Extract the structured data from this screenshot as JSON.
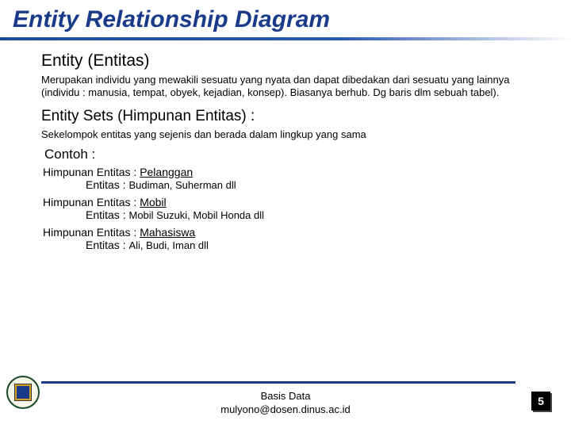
{
  "title": "Entity Relationship Diagram",
  "sections": {
    "entity": {
      "heading": "Entity (Entitas)",
      "body": "Merupakan individu yang mewakili sesuatu yang nyata dan dapat dibedakan dari sesuatu yang lainnya (individu : manusia, tempat, obyek, kejadian, konsep). Biasanya berhub. Dg baris dlm sebuah tabel)."
    },
    "entity_sets": {
      "heading": "Entity Sets (Himpunan Entitas) :",
      "body": "Sekelompok entitas yang sejenis dan berada dalam lingkup yang sama"
    },
    "contoh": {
      "heading": "Contoh :",
      "examples": [
        {
          "set_label": "Himpunan Entitas :",
          "set_value": "Pelanggan",
          "ent_label": "Entitas :",
          "ent_value": "Budiman, Suherman dll"
        },
        {
          "set_label": "Himpunan Entitas :",
          "set_value": "Mobil",
          "ent_label": "Entitas :",
          "ent_value": "Mobil Suzuki, Mobil Honda dll"
        },
        {
          "set_label": "Himpunan Entitas :",
          "set_value": "Mahasiswa",
          "ent_label": "Entitas :",
          "ent_value": "Ali, Budi, Iman dll"
        }
      ]
    }
  },
  "footer": {
    "line1": "Basis Data",
    "line2": "mulyono@dosen.dinus.ac.id"
  },
  "page_number": "5",
  "colors": {
    "title_color": "#1a3a8a",
    "underline_start": "#1a4aa0",
    "footer_line": "#1a3a8a",
    "page_bg": "#000000",
    "page_fg": "#ffffff"
  }
}
